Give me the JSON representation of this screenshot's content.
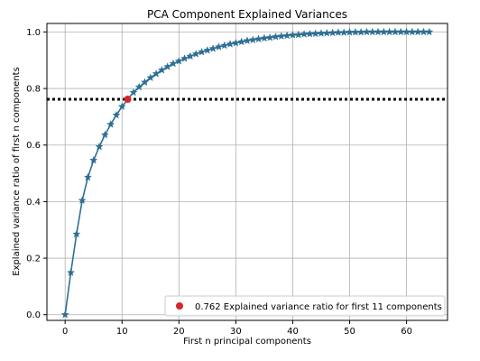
{
  "chart_data": {
    "type": "line",
    "title": "PCA Component Explained Variances",
    "xlabel": "First n principal components",
    "ylabel": "Explained variance ratio of first n components",
    "xlim": [
      -3.2,
      67.2
    ],
    "ylim": [
      -0.02,
      1.03
    ],
    "xticks": [
      0,
      10,
      20,
      30,
      40,
      50,
      60
    ],
    "xtick_labels": [
      "0",
      "10",
      "20",
      "30",
      "40",
      "50",
      "60"
    ],
    "yticks": [
      0.0,
      0.2,
      0.4,
      0.6,
      0.8,
      1.0
    ],
    "ytick_labels": [
      "0.0",
      "0.2",
      "0.4",
      "0.6",
      "0.8",
      "1.0"
    ],
    "grid": true,
    "legend_position": "lower-right",
    "series": [
      {
        "marker": "star",
        "color": "#2e6f94",
        "x": [
          0,
          1,
          2,
          3,
          4,
          5,
          6,
          7,
          8,
          9,
          10,
          11,
          12,
          13,
          14,
          15,
          16,
          17,
          18,
          19,
          20,
          21,
          22,
          23,
          24,
          25,
          26,
          27,
          28,
          29,
          30,
          31,
          32,
          33,
          34,
          35,
          36,
          37,
          38,
          39,
          40,
          41,
          42,
          43,
          44,
          45,
          46,
          47,
          48,
          49,
          50,
          51,
          52,
          53,
          54,
          55,
          56,
          57,
          58,
          59,
          60,
          61,
          62,
          63,
          64
        ],
        "values": [
          0.0,
          0.149,
          0.285,
          0.404,
          0.486,
          0.546,
          0.594,
          0.636,
          0.673,
          0.706,
          0.736,
          0.762,
          0.786,
          0.805,
          0.822,
          0.838,
          0.852,
          0.865,
          0.877,
          0.888,
          0.897,
          0.906,
          0.914,
          0.922,
          0.929,
          0.935,
          0.941,
          0.947,
          0.952,
          0.957,
          0.961,
          0.965,
          0.969,
          0.972,
          0.975,
          0.978,
          0.98,
          0.983,
          0.985,
          0.987,
          0.989,
          0.99,
          0.992,
          0.993,
          0.994,
          0.995,
          0.996,
          0.997,
          0.998,
          0.998,
          0.999,
          0.999,
          0.999,
          1.0,
          1.0,
          1.0,
          1.0,
          1.0,
          1.0,
          1.0,
          1.0,
          1.0,
          1.0,
          1.0,
          1.0
        ]
      }
    ],
    "threshold_line": {
      "y": 0.762,
      "style": "dotted",
      "color": "#000000"
    },
    "highlight_point": {
      "x": 11,
      "y": 0.762,
      "color": "#d62728",
      "legend_label": "0.762 Explained variance ratio for first 11 components"
    }
  }
}
